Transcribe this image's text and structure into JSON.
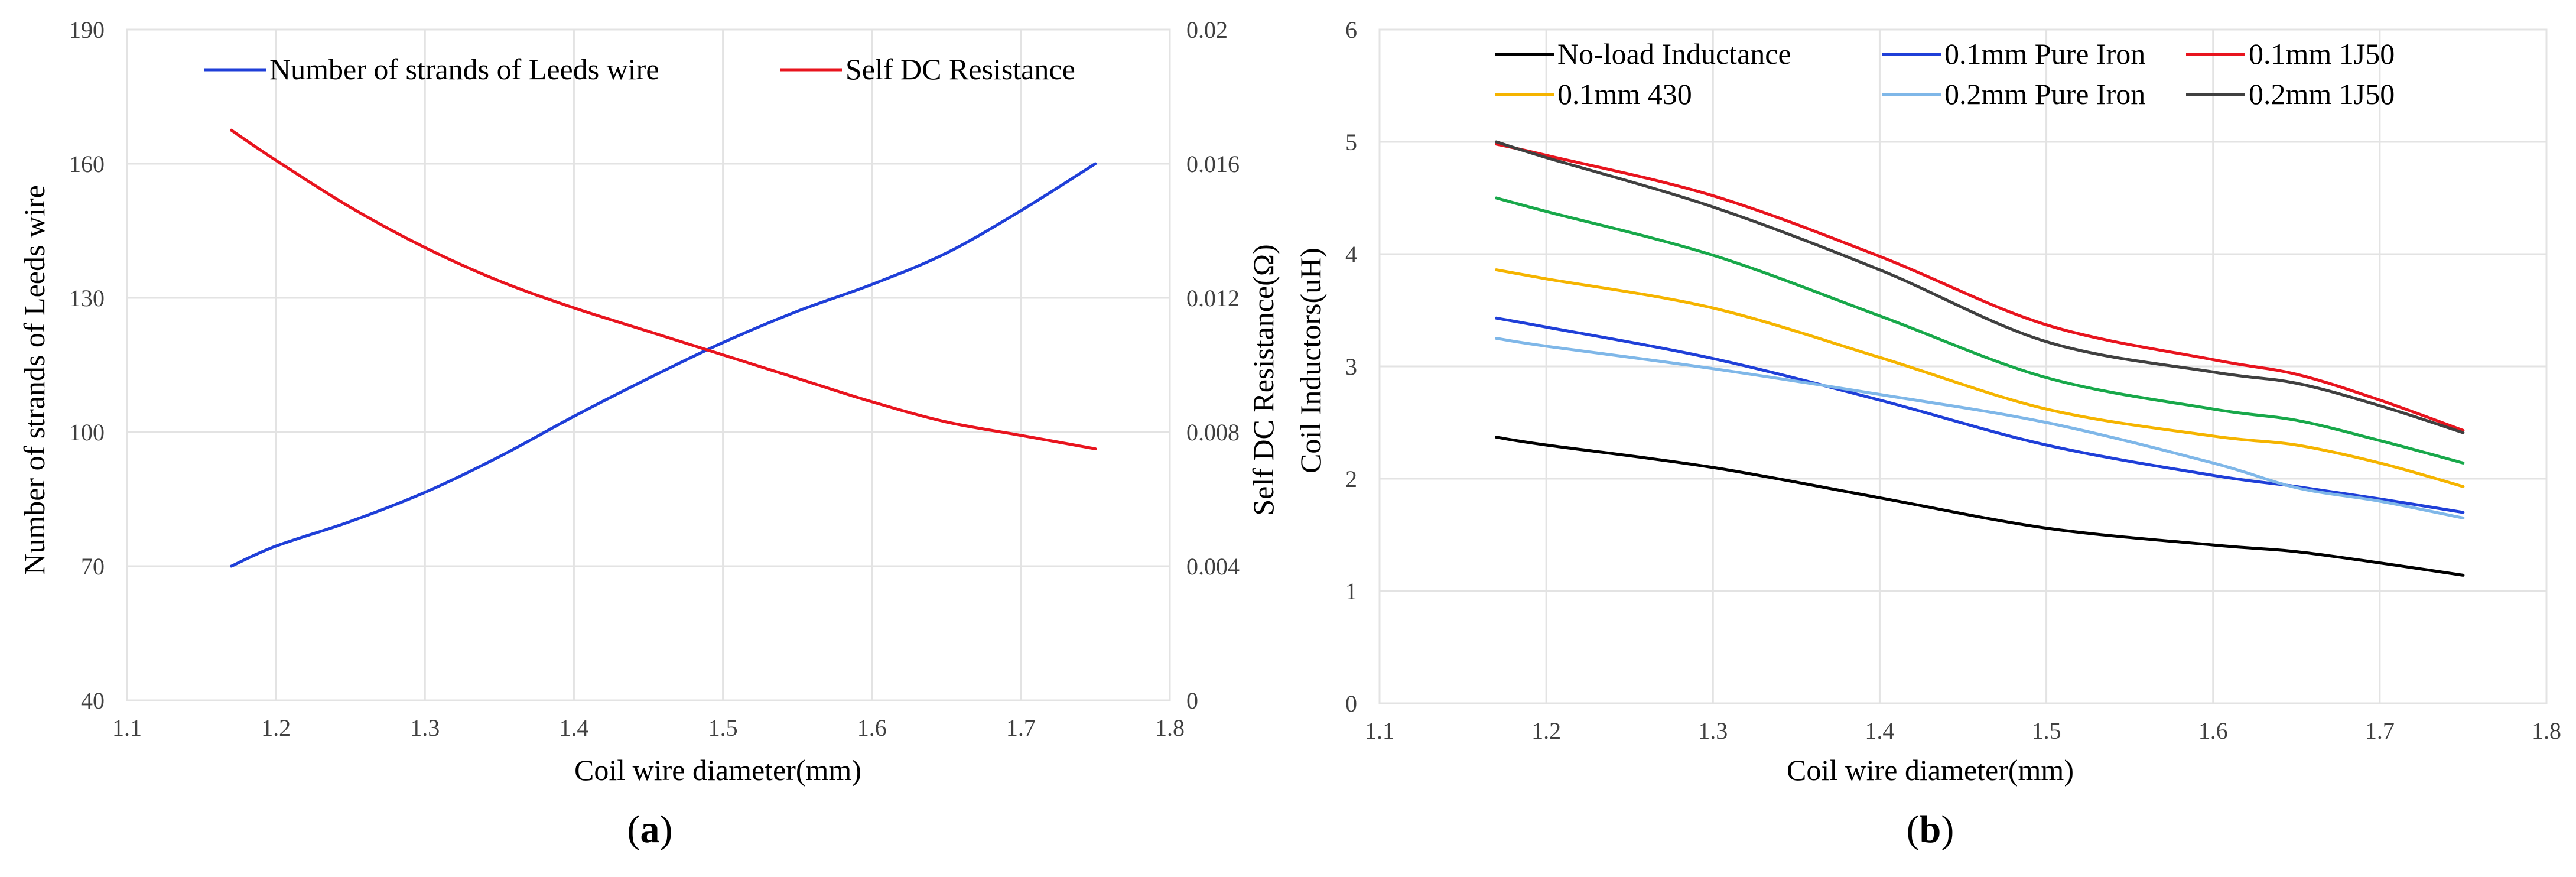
{
  "colors": {
    "blue": "#1f3fd8",
    "red": "#e8141e",
    "green": "#18a84a",
    "orange": "#f5b400",
    "light_blue": "#7fb7e8",
    "dark_grey": "#404040",
    "black": "#000000",
    "grid": "#e3e3e3",
    "axis_text": "#404040"
  },
  "chart_data": [
    {
      "type": "line",
      "panel_label": "a",
      "xlabel": "Coil wire diameter(mm)",
      "ylabel": "Number of strands of Leeds wire",
      "y2label": "Self DC Resistance(Ω)",
      "xlim": [
        1.1,
        1.8
      ],
      "ylim": [
        40,
        190
      ],
      "y2lim": [
        0,
        0.02
      ],
      "x_ticks": [
        "1.1",
        "1.2",
        "1.3",
        "1.4",
        "1.5",
        "1.6",
        "1.7",
        "1.8"
      ],
      "y_ticks": [
        "40",
        "70",
        "100",
        "130",
        "160",
        "190"
      ],
      "y2_ticks": [
        "0",
        "0.004",
        "0.008",
        "0.012",
        "0.016",
        "0.02"
      ],
      "grid": true,
      "legend_position": "top",
      "series": [
        {
          "name": "Number of strands of Leeds wire",
          "axis": "left",
          "color": "blue",
          "x": [
            1.17,
            1.2,
            1.25,
            1.3,
            1.35,
            1.4,
            1.45,
            1.5,
            1.55,
            1.6,
            1.65,
            1.7,
            1.75
          ],
          "y": [
            70,
            74.5,
            80,
            86.5,
            94.5,
            103.5,
            112,
            120,
            127,
            133,
            140,
            149.5,
            160
          ]
        },
        {
          "name": "Self DC Resistance",
          "axis": "right",
          "color": "red",
          "x": [
            1.17,
            1.2,
            1.25,
            1.3,
            1.35,
            1.4,
            1.45,
            1.5,
            1.55,
            1.6,
            1.65,
            1.7,
            1.75
          ],
          "y": [
            0.017,
            0.0161,
            0.0147,
            0.0135,
            0.0125,
            0.0117,
            0.011,
            0.0103,
            0.0096,
            0.0089,
            0.0083,
            0.0079,
            0.0075
          ]
        }
      ]
    },
    {
      "type": "line",
      "panel_label": "b",
      "xlabel": "Coil wire diameter(mm)",
      "ylabel": "Coil Inductors(uH)",
      "xlim": [
        1.1,
        1.8
      ],
      "ylim": [
        0,
        6
      ],
      "x_ticks": [
        "1.1",
        "1.2",
        "1.3",
        "1.4",
        "1.5",
        "1.6",
        "1.7",
        "1.8"
      ],
      "y_ticks": [
        "0",
        "1",
        "2",
        "3",
        "4",
        "5",
        "6"
      ],
      "grid": true,
      "legend_position": "top",
      "series": [
        {
          "name": "No-load Inductance",
          "color": "black",
          "x": [
            1.17,
            1.2,
            1.3,
            1.4,
            1.5,
            1.6,
            1.65,
            1.7,
            1.75
          ],
          "y": [
            2.37,
            2.3,
            2.1,
            1.83,
            1.56,
            1.41,
            1.35,
            1.25,
            1.14
          ]
        },
        {
          "name": "0.1mm Pure Iron",
          "color": "blue",
          "x": [
            1.17,
            1.2,
            1.3,
            1.4,
            1.5,
            1.6,
            1.65,
            1.7,
            1.75
          ],
          "y": [
            3.43,
            3.35,
            3.07,
            2.7,
            2.3,
            2.03,
            1.93,
            1.82,
            1.7
          ]
        },
        {
          "name": "0.1mm 1J50",
          "color": "red",
          "x": [
            1.17,
            1.2,
            1.3,
            1.4,
            1.5,
            1.6,
            1.65,
            1.7,
            1.75
          ],
          "y": [
            4.98,
            4.88,
            4.52,
            3.98,
            3.37,
            3.06,
            2.93,
            2.7,
            2.43
          ]
        },
        {
          "name": "",
          "color": "green",
          "x": [
            1.17,
            1.2,
            1.3,
            1.4,
            1.5,
            1.6,
            1.65,
            1.7,
            1.75
          ],
          "y": [
            4.5,
            4.38,
            3.99,
            3.45,
            2.9,
            2.62,
            2.52,
            2.34,
            2.14
          ]
        },
        {
          "name": "0.1mm 430",
          "color": "orange",
          "x": [
            1.17,
            1.2,
            1.3,
            1.4,
            1.5,
            1.6,
            1.65,
            1.7,
            1.75
          ],
          "y": [
            3.86,
            3.78,
            3.52,
            3.08,
            2.62,
            2.38,
            2.3,
            2.14,
            1.93
          ]
        },
        {
          "name": "0.2mm Pure Iron",
          "color": "light_blue",
          "x": [
            1.17,
            1.2,
            1.3,
            1.4,
            1.5,
            1.6,
            1.65,
            1.7,
            1.75
          ],
          "y": [
            3.25,
            3.18,
            2.98,
            2.75,
            2.5,
            2.14,
            1.92,
            1.8,
            1.65
          ]
        },
        {
          "name": "0.2mm 1J50",
          "color": "dark_grey",
          "x": [
            1.17,
            1.2,
            1.3,
            1.4,
            1.5,
            1.6,
            1.65,
            1.7,
            1.75
          ],
          "y": [
            5.0,
            4.86,
            4.42,
            3.86,
            3.22,
            2.95,
            2.85,
            2.65,
            2.41
          ]
        }
      ]
    }
  ]
}
